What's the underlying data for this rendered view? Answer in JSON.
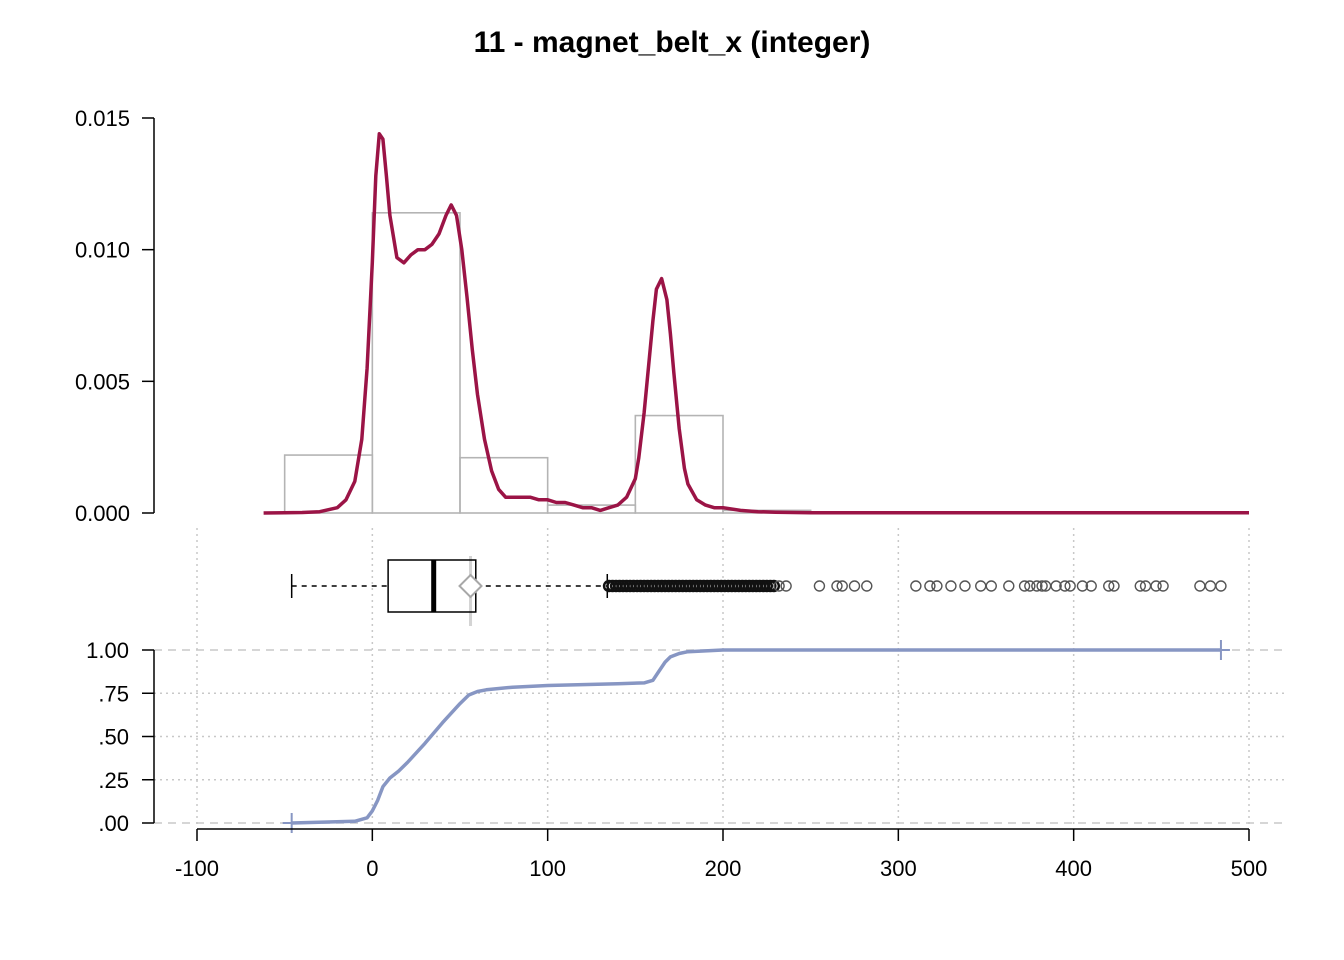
{
  "chart_data": {
    "type": "distribution-summary",
    "title": "11 - magnet_belt_x (integer)",
    "colors": {
      "density": "#9b1446",
      "histogram": "#b4b4b4",
      "ecdf": "#8796c3",
      "grid": "#c8c8c8",
      "outlier": "#555555",
      "mean_marker": "#a8a8a8"
    },
    "x_axis": {
      "range": [
        -100,
        500
      ],
      "ticks": [
        -100,
        0,
        100,
        200,
        300,
        400,
        500
      ],
      "tick_labels": [
        "-100",
        "0",
        "100",
        "200",
        "300",
        "400",
        "500"
      ],
      "grid": true
    },
    "density_panel": {
      "y_range": [
        0,
        0.015
      ],
      "y_ticks": [
        0,
        0.005,
        0.01,
        0.015
      ],
      "y_tick_labels": [
        "0.000",
        "0.005",
        "0.010",
        "0.015"
      ],
      "histogram": {
        "bin_edges": [
          -50,
          0,
          50,
          100,
          150,
          200,
          250
        ],
        "densities": [
          0.0022,
          0.0114,
          0.0021,
          0.0003,
          0.0037,
          0.0001
        ]
      },
      "density_curve": {
        "x": [
          -62,
          -50,
          -40,
          -30,
          -20,
          -15,
          -10,
          -6,
          -3,
          0,
          2,
          4,
          6,
          8,
          10,
          14,
          18,
          22,
          26,
          30,
          34,
          38,
          42,
          45,
          48,
          51,
          54,
          57,
          60,
          64,
          68,
          72,
          76,
          80,
          85,
          90,
          95,
          100,
          105,
          110,
          115,
          120,
          125,
          130,
          135,
          140,
          145,
          150,
          152,
          155,
          158,
          160,
          162,
          165,
          168,
          170,
          172,
          175,
          178,
          180,
          185,
          190,
          195,
          200,
          210,
          220,
          230,
          250,
          300,
          350,
          400,
          450,
          500
        ],
        "y": [
          0,
          1e-05,
          2e-05,
          5e-05,
          0.0002,
          0.0005,
          0.0012,
          0.0028,
          0.0055,
          0.0095,
          0.0128,
          0.0144,
          0.0142,
          0.0128,
          0.0113,
          0.0097,
          0.0095,
          0.0098,
          0.01,
          0.01,
          0.0102,
          0.0106,
          0.0113,
          0.0117,
          0.0113,
          0.01,
          0.0082,
          0.0062,
          0.0045,
          0.0028,
          0.0016,
          0.0009,
          0.0006,
          0.0006,
          0.0006,
          0.0006,
          0.0005,
          0.0005,
          0.0004,
          0.0004,
          0.0003,
          0.0002,
          0.0002,
          0.0001,
          0.0002,
          0.0003,
          0.0006,
          0.0013,
          0.0021,
          0.0038,
          0.0059,
          0.0073,
          0.0085,
          0.0089,
          0.0081,
          0.0068,
          0.0053,
          0.0032,
          0.0017,
          0.0011,
          0.0005,
          0.0003,
          0.0002,
          0.0002,
          0.0001,
          5e-05,
          3e-05,
          1e-05,
          1e-05,
          1e-05,
          1e-05,
          1e-05,
          1e-05
        ]
      }
    },
    "boxplot": {
      "whisker_low": -46,
      "q1": 9,
      "median": 35,
      "q3": 59,
      "whisker_high": 134,
      "mean": 56,
      "outliers": [
        135,
        137,
        139,
        141,
        143,
        145,
        147,
        149,
        151,
        153,
        155,
        157,
        159,
        161,
        163,
        165,
        167,
        169,
        171,
        173,
        175,
        177,
        179,
        181,
        183,
        185,
        187,
        189,
        191,
        193,
        195,
        197,
        199,
        201,
        203,
        205,
        207,
        209,
        211,
        213,
        215,
        217,
        219,
        221,
        223,
        225,
        227,
        229,
        232,
        236,
        255,
        265,
        268,
        275,
        282,
        310,
        318,
        322,
        330,
        338,
        347,
        353,
        363,
        372,
        375,
        379,
        382,
        384,
        390,
        395,
        398,
        405,
        410,
        420,
        423,
        438,
        441,
        447,
        451,
        472,
        478,
        484
      ]
    },
    "ecdf_panel": {
      "y_range": [
        0,
        1
      ],
      "y_ticks": [
        0,
        0.25,
        0.5,
        0.75,
        1
      ],
      "y_tick_labels": [
        ".00",
        ".25",
        ".50",
        ".75",
        "1.00"
      ],
      "x": [
        -46,
        -10,
        -3,
        0,
        3,
        6,
        10,
        15,
        20,
        30,
        40,
        50,
        55,
        60,
        65,
        70,
        80,
        100,
        120,
        140,
        155,
        160,
        163,
        167,
        170,
        175,
        180,
        190,
        200,
        220,
        300,
        400,
        484
      ],
      "y": [
        0,
        0.01,
        0.03,
        0.07,
        0.13,
        0.21,
        0.26,
        0.3,
        0.35,
        0.46,
        0.58,
        0.69,
        0.74,
        0.76,
        0.77,
        0.775,
        0.785,
        0.795,
        0.8,
        0.805,
        0.81,
        0.825,
        0.87,
        0.93,
        0.96,
        0.98,
        0.99,
        0.995,
        1,
        1,
        1,
        1,
        1
      ]
    }
  }
}
